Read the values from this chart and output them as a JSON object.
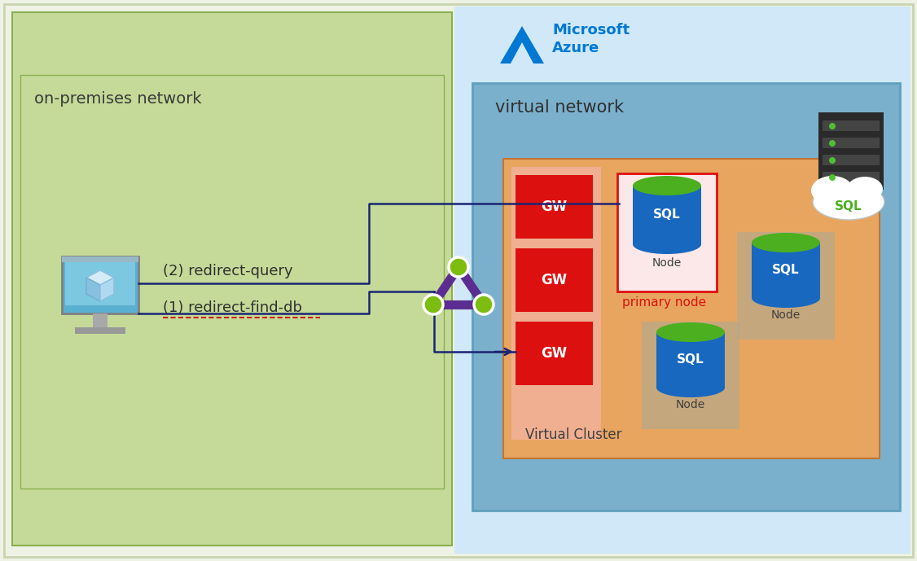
{
  "bg_color": "#edf2e5",
  "on_prem_bg": "#c5da98",
  "on_prem_border": "#8ab050",
  "on_prem_label": "on-premises network",
  "azure_bg": "#d0e8f8",
  "vnet_bg": "#7ab0cc",
  "vnet_border": "#60a0bc",
  "vnet_label": "virtual network",
  "vcluster_bg": "#e8a560",
  "vcluster_label": "Virtual Cluster",
  "gw_color": "#dd1010",
  "gw_text_color": "#ffffff",
  "node_bg": "#b8a888",
  "primary_box_border": "#dd1010",
  "primary_box_bg": "#fce8e8",
  "primary_node_label": "primary node",
  "primary_node_label_color": "#dd1010",
  "line_color": "#1a2575",
  "triangle_edge_color": "#5c2d91",
  "triangle_node_color": "#7cbd10",
  "sql_blue_body": "#1868c0",
  "sql_green_top": "#4caf20",
  "label1": "(1) redirect-find-db",
  "label2": "(2) redirect-query",
  "azure_blue": "#0078d4",
  "server_bg": "#2a2a2a",
  "server_stripe": "#444444",
  "server_dot": "#50c030"
}
